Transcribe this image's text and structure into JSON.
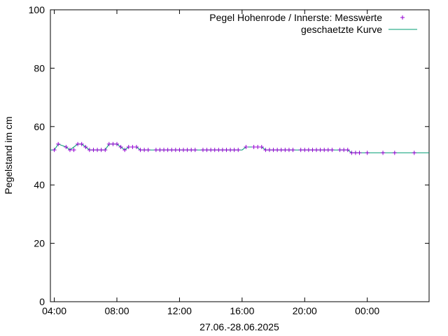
{
  "chart_data": {
    "type": "line",
    "title": "",
    "xlabel": "27.06.-28.06.2025",
    "ylabel": "Pegelstand im cm",
    "xlim": [
      3.75,
      27.95
    ],
    "ylim": [
      0,
      100
    ],
    "x_unit": "hours since 27.06. 00:00",
    "x_ticks": [
      {
        "value": 4,
        "label": "04:00"
      },
      {
        "value": 8,
        "label": "08:00"
      },
      {
        "value": 12,
        "label": "12:00"
      },
      {
        "value": 16,
        "label": "16:00"
      },
      {
        "value": 20,
        "label": "20:00"
      },
      {
        "value": 24,
        "label": "00:00"
      }
    ],
    "y_ticks": [
      {
        "value": 0,
        "label": "0"
      },
      {
        "value": 20,
        "label": "20"
      },
      {
        "value": 40,
        "label": "40"
      },
      {
        "value": 60,
        "label": "60"
      },
      {
        "value": 80,
        "label": "80"
      },
      {
        "value": 100,
        "label": "100"
      }
    ],
    "legend_position": "top-right",
    "colors": {
      "measured": "#9400d3",
      "curve": "#009e73"
    },
    "series": [
      {
        "name": "Pegel Hohenrode / Innerste: Messwerte",
        "style": "points-plus",
        "x": [
          4.0,
          4.25,
          4.75,
          5.0,
          5.25,
          5.5,
          5.75,
          6.0,
          6.25,
          6.5,
          6.75,
          7.0,
          7.25,
          7.5,
          7.75,
          8.0,
          8.25,
          8.5,
          8.75,
          9.0,
          9.25,
          9.5,
          9.75,
          10.0,
          10.5,
          10.75,
          11.0,
          11.25,
          11.5,
          11.75,
          12.0,
          12.25,
          12.5,
          12.75,
          13.0,
          13.5,
          13.75,
          14.0,
          14.25,
          14.5,
          14.75,
          15.0,
          15.25,
          15.5,
          15.75,
          16.25,
          16.75,
          17.0,
          17.25,
          17.5,
          17.75,
          18.0,
          18.25,
          18.5,
          18.75,
          19.0,
          19.25,
          19.75,
          20.0,
          20.25,
          20.5,
          20.75,
          21.0,
          21.25,
          21.5,
          21.75,
          22.25,
          22.5,
          22.75,
          23.0,
          23.25,
          23.5,
          24.0,
          25.0,
          25.75,
          27.0
        ],
        "y": [
          52,
          54,
          53,
          52,
          52,
          54,
          54,
          53,
          52,
          52,
          52,
          52,
          52,
          54,
          54,
          54,
          53,
          52,
          53,
          53,
          53,
          52,
          52,
          52,
          52,
          52,
          52,
          52,
          52,
          52,
          52,
          52,
          52,
          52,
          52,
          52,
          52,
          52,
          52,
          52,
          52,
          52,
          52,
          52,
          52,
          53,
          53,
          53,
          53,
          52,
          52,
          52,
          52,
          52,
          52,
          52,
          52,
          52,
          52,
          52,
          52,
          52,
          52,
          52,
          52,
          52,
          52,
          52,
          52,
          51,
          51,
          51,
          51,
          51,
          51,
          51
        ]
      },
      {
        "name": "geschaetzte Kurve",
        "style": "line",
        "x": [
          3.75,
          4.0,
          4.25,
          4.75,
          5.0,
          5.5,
          5.75,
          6.0,
          6.25,
          7.25,
          7.5,
          8.0,
          8.25,
          8.5,
          8.75,
          9.25,
          9.5,
          16.0,
          16.25,
          17.25,
          17.5,
          22.75,
          23.0,
          27.95
        ],
        "y": [
          52,
          52,
          54,
          53,
          52,
          54,
          54,
          53,
          52,
          52,
          54,
          54,
          53,
          52,
          53,
          53,
          52,
          52,
          53,
          53,
          52,
          52,
          51,
          51
        ]
      }
    ]
  }
}
